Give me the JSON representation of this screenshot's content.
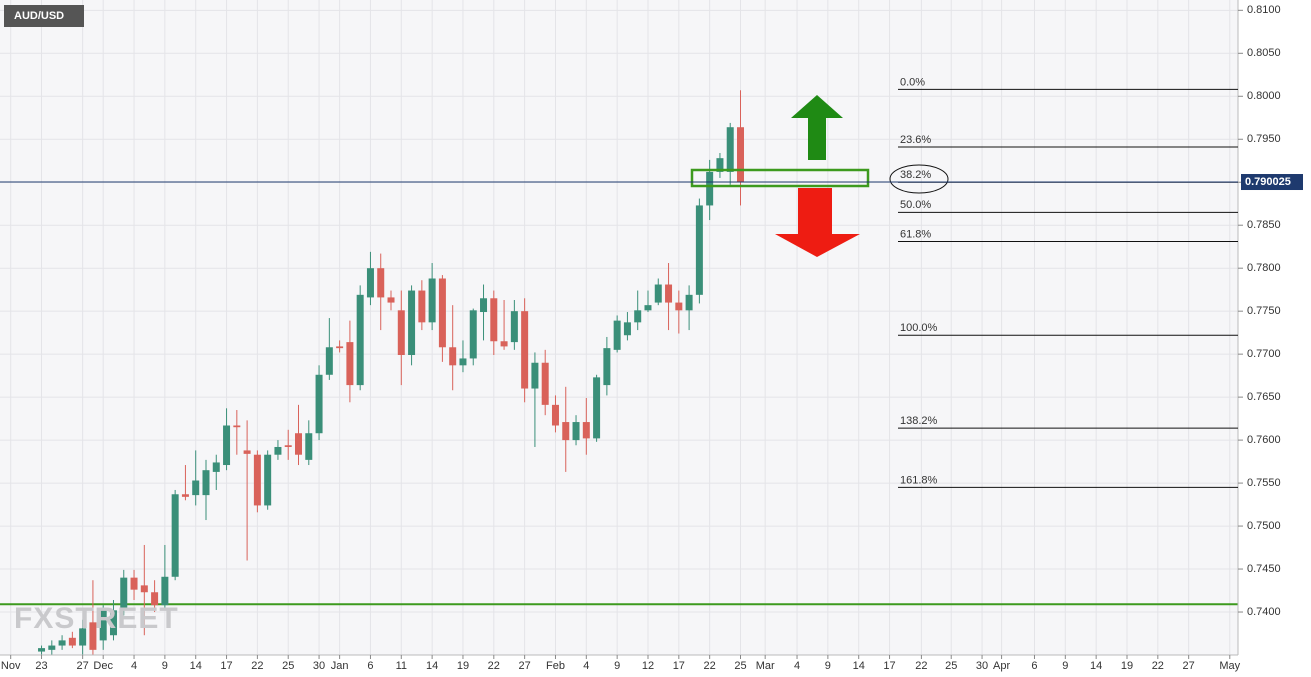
{
  "chart_data": {
    "type": "candlestick",
    "symbol": "AUD/USD",
    "watermark": "FXSTREET",
    "up_color": "#3a8f79",
    "down_color": "#d9625a",
    "x": [
      0,
      1,
      2,
      3,
      4,
      5,
      6,
      7,
      8,
      9,
      10,
      11,
      12,
      13,
      14,
      15,
      16,
      17,
      18,
      19,
      20,
      21,
      22,
      23,
      24,
      25,
      26,
      27,
      28,
      29,
      30,
      31,
      32,
      33,
      34,
      35,
      36,
      37,
      38,
      39,
      40,
      41,
      42,
      43,
      44,
      45,
      46,
      47,
      48,
      49,
      50,
      51,
      52,
      53,
      54,
      55,
      56,
      57,
      58,
      59,
      60,
      61,
      62,
      63,
      64,
      65,
      66,
      67,
      68
    ],
    "open": [
      0.7354,
      0.7356,
      0.7361,
      0.737,
      0.7361,
      0.7388,
      0.7367,
      0.7373,
      0.7402,
      0.744,
      0.7431,
      0.7423,
      0.7408,
      0.7441,
      0.7537,
      0.7536,
      0.7536,
      0.7563,
      0.7571,
      0.7617,
      0.7588,
      0.7583,
      0.7524,
      0.7583,
      0.7594,
      0.7608,
      0.7577,
      0.7608,
      0.7676,
      0.7709,
      0.7714,
      0.7664,
      0.7766,
      0.78,
      0.7766,
      0.7751,
      0.7699,
      0.7774,
      0.7737,
      0.7788,
      0.7708,
      0.7687,
      0.7695,
      0.7749,
      0.7765,
      0.7715,
      0.7714,
      0.775,
      0.766,
      0.769,
      0.7641,
      0.7621,
      0.76,
      0.7621,
      0.7602,
      0.7664,
      0.7705,
      0.7722,
      0.7737,
      0.7751,
      0.776,
      0.7781,
      0.776,
      0.7751,
      0.7769,
      0.7873,
      0.7912,
      0.7912,
      0.7964
    ],
    "high": [
      0.7361,
      0.7367,
      0.7373,
      0.7377,
      0.7391,
      0.7437,
      0.7408,
      0.7414,
      0.7449,
      0.7449,
      0.7478,
      0.7437,
      0.7478,
      0.7542,
      0.7571,
      0.7588,
      0.7577,
      0.7583,
      0.7637,
      0.7635,
      0.7623,
      0.7588,
      0.7588,
      0.76,
      0.7612,
      0.7641,
      0.7623,
      0.7687,
      0.7742,
      0.7716,
      0.7739,
      0.778,
      0.7819,
      0.7817,
      0.7774,
      0.7774,
      0.778,
      0.7786,
      0.7806,
      0.7792,
      0.7757,
      0.7716,
      0.7753,
      0.7781,
      0.7774,
      0.7763,
      0.7763,
      0.7765,
      0.7702,
      0.7705,
      0.7652,
      0.7662,
      0.7629,
      0.7649,
      0.7676,
      0.772,
      0.7745,
      0.7749,
      0.7774,
      0.7774,
      0.7788,
      0.7806,
      0.7774,
      0.778,
      0.7881,
      0.7926,
      0.7934,
      0.7969,
      0.8007
    ],
    "low": [
      0.735,
      0.735,
      0.7356,
      0.7358,
      0.735,
      0.735,
      0.7356,
      0.7367,
      0.7396,
      0.7414,
      0.7373,
      0.74,
      0.7402,
      0.7437,
      0.753,
      0.7524,
      0.7507,
      0.7542,
      0.7565,
      0.7583,
      0.746,
      0.7516,
      0.7519,
      0.7577,
      0.7577,
      0.7571,
      0.7571,
      0.76,
      0.767,
      0.7702,
      0.7644,
      0.7658,
      0.7757,
      0.7728,
      0.7751,
      0.7664,
      0.7687,
      0.7728,
      0.7728,
      0.7691,
      0.7658,
      0.7679,
      0.7687,
      0.7716,
      0.7699,
      0.7705,
      0.7705,
      0.7644,
      0.7592,
      0.7629,
      0.7609,
      0.7563,
      0.7594,
      0.7583,
      0.7598,
      0.7652,
      0.7702,
      0.7716,
      0.7728,
      0.7749,
      0.7757,
      0.7728,
      0.7724,
      0.7728,
      0.7759,
      0.7856,
      0.7905,
      0.7897,
      0.7873
    ],
    "close": [
      0.7358,
      0.7361,
      0.7367,
      0.7361,
      0.7381,
      0.7356,
      0.7402,
      0.7402,
      0.744,
      0.7426,
      0.7423,
      0.7408,
      0.7441,
      0.7537,
      0.7534,
      0.7553,
      0.7565,
      0.7574,
      0.7617,
      0.7615,
      0.7584,
      0.7524,
      0.7583,
      0.7592,
      0.7592,
      0.7583,
      0.7608,
      0.7676,
      0.7708,
      0.7707,
      0.7664,
      0.7769,
      0.78,
      0.7766,
      0.776,
      0.7699,
      0.7774,
      0.7737,
      0.7788,
      0.7708,
      0.7687,
      0.7695,
      0.7751,
      0.7765,
      0.7715,
      0.7709,
      0.775,
      0.766,
      0.769,
      0.7641,
      0.7617,
      0.76,
      0.7621,
      0.7602,
      0.7673,
      0.7707,
      0.7739,
      0.7737,
      0.7751,
      0.7757,
      0.7781,
      0.776,
      0.7751,
      0.7769,
      0.7873,
      0.7912,
      0.7928,
      0.7964,
      0.79
    ],
    "xlim": [
      -4.04,
      116.4
    ],
    "xticks": [
      {
        "value": -3,
        "label": "Nov"
      },
      {
        "value": 0,
        "label": "23"
      },
      {
        "value": 4,
        "label": "27"
      },
      {
        "value": 6,
        "label": "Dec"
      },
      {
        "value": 9,
        "label": "4"
      },
      {
        "value": 12,
        "label": "9"
      },
      {
        "value": 15,
        "label": "14"
      },
      {
        "value": 18,
        "label": "17"
      },
      {
        "value": 21,
        "label": "22"
      },
      {
        "value": 24,
        "label": "25"
      },
      {
        "value": 27,
        "label": "30"
      },
      {
        "value": 29,
        "label": "Jan"
      },
      {
        "value": 32,
        "label": "6"
      },
      {
        "value": 35,
        "label": "11"
      },
      {
        "value": 38,
        "label": "14"
      },
      {
        "value": 41,
        "label": "19"
      },
      {
        "value": 44,
        "label": "22"
      },
      {
        "value": 47,
        "label": "27"
      },
      {
        "value": 50,
        "label": "Feb"
      },
      {
        "value": 53,
        "label": "4"
      },
      {
        "value": 56,
        "label": "9"
      },
      {
        "value": 59,
        "label": "12"
      },
      {
        "value": 62,
        "label": "17"
      },
      {
        "value": 65,
        "label": "22"
      },
      {
        "value": 68,
        "label": "25"
      },
      {
        "value": 70.4,
        "label": "Mar"
      },
      {
        "value": 73.5,
        "label": "4"
      },
      {
        "value": 76.5,
        "label": "9"
      },
      {
        "value": 79.5,
        "label": "14"
      },
      {
        "value": 82.5,
        "label": "17"
      },
      {
        "value": 85.6,
        "label": "22"
      },
      {
        "value": 88.5,
        "label": "25"
      },
      {
        "value": 91.5,
        "label": "30"
      },
      {
        "value": 93.4,
        "label": "Apr"
      },
      {
        "value": 96.6,
        "label": "6"
      },
      {
        "value": 99.6,
        "label": "9"
      },
      {
        "value": 102.6,
        "label": "14"
      },
      {
        "value": 105.6,
        "label": "19"
      },
      {
        "value": 108.6,
        "label": "22"
      },
      {
        "value": 111.6,
        "label": "27"
      },
      {
        "value": 115.6,
        "label": "May"
      }
    ],
    "ylim": [
      0.735,
      0.8112
    ],
    "yticks": [
      {
        "value": 0.81,
        "label": "0.8100"
      },
      {
        "value": 0.805,
        "label": "0.8050"
      },
      {
        "value": 0.8,
        "label": "0.8000"
      },
      {
        "value": 0.795,
        "label": "0.7950"
      },
      {
        "value": 0.79,
        "label": "0.7900"
      },
      {
        "value": 0.785,
        "label": "0.7850"
      },
      {
        "value": 0.78,
        "label": "0.7800"
      },
      {
        "value": 0.775,
        "label": "0.7750"
      },
      {
        "value": 0.77,
        "label": "0.7700"
      },
      {
        "value": 0.765,
        "label": "0.7650"
      },
      {
        "value": 0.76,
        "label": "0.7600"
      },
      {
        "value": 0.755,
        "label": "0.7550"
      },
      {
        "value": 0.75,
        "label": "0.7500"
      },
      {
        "value": 0.745,
        "label": "0.7450"
      },
      {
        "value": 0.74,
        "label": "0.7400"
      }
    ],
    "grid": true,
    "price_line": {
      "value": 0.790025,
      "color": "#1e3a6e"
    },
    "support_line": {
      "value": 0.7409,
      "color": "#3d9a1e"
    },
    "fib_levels": [
      {
        "label": "0.0%",
        "value": 0.8008
      },
      {
        "label": "23.6%",
        "value": 0.7941
      },
      {
        "label": "38.2%",
        "value": 0.79
      },
      {
        "label": "50.0%",
        "value": 0.7865
      },
      {
        "label": "61.8%",
        "value": 0.7831
      },
      {
        "label": "100.0%",
        "value": 0.7722
      },
      {
        "label": "138.2%",
        "value": 0.7614
      },
      {
        "label": "161.8%",
        "value": 0.7545
      }
    ]
  }
}
